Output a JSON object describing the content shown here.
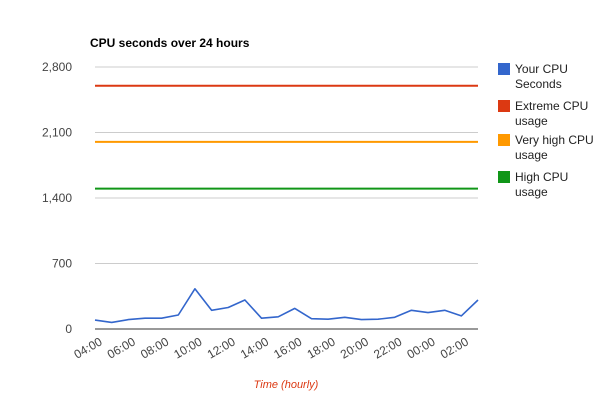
{
  "chart_data": {
    "type": "line",
    "title": "CPU seconds over 24 hours",
    "xlabel": "Time (hourly)",
    "ylabel": "",
    "ylim": [
      0,
      2800
    ],
    "yticks": [
      "0",
      "700",
      "1,400",
      "2,100",
      "2,800"
    ],
    "ytick_values": [
      0,
      700,
      1400,
      2100,
      2800
    ],
    "x": [
      "04:00",
      "05:00",
      "06:00",
      "07:00",
      "08:00",
      "09:00",
      "10:00",
      "11:00",
      "12:00",
      "13:00",
      "14:00",
      "15:00",
      "16:00",
      "17:00",
      "18:00",
      "19:00",
      "20:00",
      "21:00",
      "22:00",
      "23:00",
      "00:00",
      "01:00",
      "02:00",
      "03:00"
    ],
    "xtick_labels": [
      "04:00",
      "06:00",
      "08:00",
      "10:00",
      "12:00",
      "14:00",
      "16:00",
      "18:00",
      "20:00",
      "22:00",
      "00:00",
      "02:00"
    ],
    "legend_position": "right",
    "grid": true,
    "series": [
      {
        "name": "Your CPU Seconds",
        "color": "#3366cc",
        "values": [
          95,
          70,
          100,
          115,
          115,
          150,
          430,
          200,
          230,
          310,
          115,
          130,
          220,
          110,
          105,
          125,
          100,
          105,
          125,
          200,
          175,
          200,
          140,
          310
        ]
      },
      {
        "name": "Extreme CPU usage",
        "color": "#dc3912",
        "values": [
          2600,
          2600,
          2600,
          2600,
          2600,
          2600,
          2600,
          2600,
          2600,
          2600,
          2600,
          2600,
          2600,
          2600,
          2600,
          2600,
          2600,
          2600,
          2600,
          2600,
          2600,
          2600,
          2600,
          2600
        ]
      },
      {
        "name": "Very high CPU usage",
        "color": "#ff9900",
        "values": [
          2000,
          2000,
          2000,
          2000,
          2000,
          2000,
          2000,
          2000,
          2000,
          2000,
          2000,
          2000,
          2000,
          2000,
          2000,
          2000,
          2000,
          2000,
          2000,
          2000,
          2000,
          2000,
          2000,
          2000
        ]
      },
      {
        "name": "High CPU usage",
        "color": "#109618",
        "values": [
          1500,
          1500,
          1500,
          1500,
          1500,
          1500,
          1500,
          1500,
          1500,
          1500,
          1500,
          1500,
          1500,
          1500,
          1500,
          1500,
          1500,
          1500,
          1500,
          1500,
          1500,
          1500,
          1500,
          1500
        ]
      }
    ],
    "legend_lines": [
      [
        "Your CPU",
        "Seconds"
      ],
      [
        "Extreme CPU",
        "usage"
      ],
      [
        "Very high CPU",
        "usage"
      ],
      [
        "High CPU",
        "usage"
      ]
    ],
    "xlabel_color": "#dc3912",
    "axis_color": "#333333",
    "grid_color": "#cccccc"
  }
}
